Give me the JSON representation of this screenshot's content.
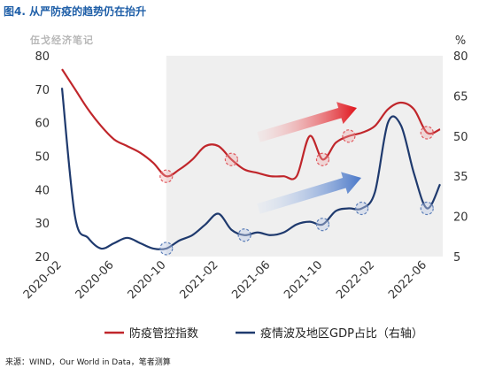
{
  "figure_title": "图4. 从严防疫的趋势仍在抬升",
  "watermark": "伍戈经济笔记",
  "source": "来源：WIND，Our World in Data，笔者测算",
  "colors": {
    "left_series": "#c0262b",
    "right_series": "#1f3a6e",
    "shade": "#efefef",
    "title": "#1f5fa8"
  },
  "chart_data": {
    "type": "line",
    "x_tick_labels": [
      "2020-02",
      "2020-06",
      "2020-10",
      "2021-02",
      "2021-06",
      "2021-10",
      "2022-02",
      "2022-06"
    ],
    "x_range": [
      "2020-02",
      "2022-07"
    ],
    "shaded_period": [
      "2020-10",
      "2022-07"
    ],
    "left_axis": {
      "ylim": [
        20,
        80
      ],
      "ticks": [
        20,
        30,
        40,
        50,
        60,
        70,
        80
      ],
      "label": ""
    },
    "right_axis": {
      "ylim": [
        5,
        80
      ],
      "ticks": [
        5,
        20,
        35,
        50,
        65,
        80
      ],
      "label": "%"
    },
    "legend_position": "bottom",
    "series": [
      {
        "name": "防疫管控指数",
        "axis": "left",
        "x": [
          "2020-02",
          "2020-03",
          "2020-04",
          "2020-05",
          "2020-06",
          "2020-07",
          "2020-08",
          "2020-09",
          "2020-10",
          "2020-11",
          "2020-12",
          "2021-01",
          "2021-02",
          "2021-03",
          "2021-04",
          "2021-05",
          "2021-06",
          "2021-07",
          "2021-08",
          "2021-09",
          "2021-10",
          "2021-11",
          "2021-12",
          "2022-01",
          "2022-02",
          "2022-03",
          "2022-04",
          "2022-05",
          "2022-06",
          "2022-07"
        ],
        "values": [
          76,
          70,
          64,
          59,
          55,
          53,
          51,
          48,
          44,
          46,
          49,
          53,
          53,
          49,
          46,
          45,
          44,
          44,
          44,
          56,
          49,
          54,
          56,
          57,
          59,
          64,
          66,
          64,
          57,
          58
        ]
      },
      {
        "name": "疫情波及地区GDP占比（右轴）",
        "axis": "right",
        "x": [
          "2020-02",
          "2020-03",
          "2020-04",
          "2020-05",
          "2020-06",
          "2020-07",
          "2020-08",
          "2020-09",
          "2020-10",
          "2020-11",
          "2020-12",
          "2021-01",
          "2021-02",
          "2021-03",
          "2021-04",
          "2021-05",
          "2021-06",
          "2021-07",
          "2021-08",
          "2021-09",
          "2021-10",
          "2021-11",
          "2021-12",
          "2022-01",
          "2022-02",
          "2022-03",
          "2022-04",
          "2022-05",
          "2022-06",
          "2022-07"
        ],
        "values": [
          68,
          20,
          12,
          8,
          10,
          12,
          10,
          8,
          8,
          11,
          13,
          17,
          21,
          15,
          13,
          14,
          13,
          14,
          17,
          18,
          17,
          22,
          23,
          23,
          29,
          55,
          54,
          36,
          23,
          32
        ]
      }
    ],
    "highlighted_points": [
      {
        "series": 0,
        "x": "2020-10"
      },
      {
        "series": 0,
        "x": "2021-03"
      },
      {
        "series": 0,
        "x": "2021-10"
      },
      {
        "series": 0,
        "x": "2021-12"
      },
      {
        "series": 0,
        "x": "2022-06"
      },
      {
        "series": 1,
        "x": "2020-10"
      },
      {
        "series": 1,
        "x": "2021-04"
      },
      {
        "series": 1,
        "x": "2021-10"
      },
      {
        "series": 1,
        "x": "2022-01"
      },
      {
        "series": 1,
        "x": "2022-06"
      }
    ]
  }
}
